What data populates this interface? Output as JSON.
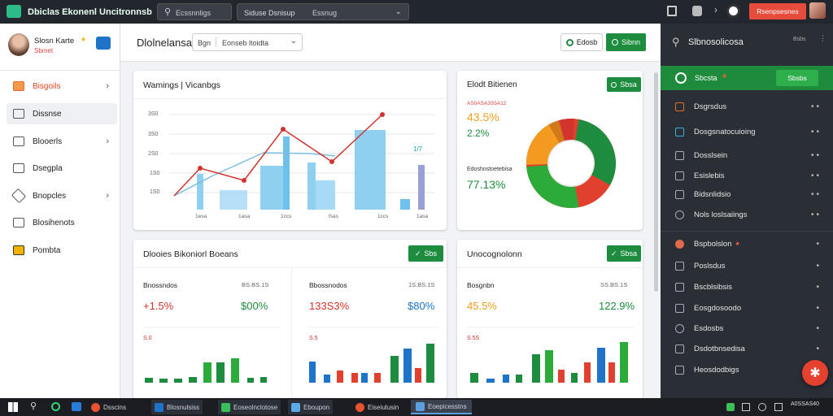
{
  "topbar": {
    "brand": "Dbiclas Ekonenl Uncitronnsb",
    "search1_label": "Ecssnnligs",
    "search2_value": "Siduse Dsnisup",
    "search2_extra": "Essnug",
    "action_label": "Rsenpsesnes",
    "icons": [
      "home-icon",
      "puzzle-icon",
      "chevron-right-icon",
      "clock-icon"
    ]
  },
  "leftnav": {
    "user_name": "Slosn Karte",
    "user_sub": "Sbmet",
    "items": [
      {
        "label": "Bisgoils",
        "icon": "folder-icon",
        "chevron": true,
        "active": true
      },
      {
        "label": "Dissnse",
        "icon": "document-icon",
        "chevron": false
      },
      {
        "label": "Blooerls",
        "icon": "cart-icon",
        "chevron": true
      },
      {
        "label": "Dsegpla",
        "icon": "file-icon",
        "chevron": false
      },
      {
        "label": "Bnopcles",
        "icon": "tag-icon",
        "chevron": true
      },
      {
        "label": "Blosihenots",
        "icon": "calendar-icon",
        "chevron": false
      },
      {
        "label": "Pombta",
        "icon": "grid-icon",
        "chevron": false
      }
    ]
  },
  "header": {
    "title": "Dlolnelansa",
    "tab1": "Bgn",
    "tab2": "Eonseb ltoidta",
    "btn1": "Edosb",
    "btn2": "Sibnn"
  },
  "card1": {
    "title": "Wamings | Vicanbgs",
    "y_ticks": [
      "3S0",
      "3S0",
      "2S0",
      "1S0",
      "1S0",
      "1S0"
    ],
    "x_ticks": [
      "1esa",
      "1asa",
      "1ccs",
      "fsas",
      "1ccs",
      "1asa"
    ],
    "side_label": "1/7"
  },
  "card2": {
    "title": "Elodt Bitienen",
    "btn": "Sbsa",
    "top_label": "AS0ASA3S5A12",
    "val1": "43.5%",
    "val2": "2.2%",
    "mid_label": "Edoshostoetebisa",
    "val3": "77.13%"
  },
  "card3": {
    "title": "Dlooies Bikoniorl Boeans",
    "btn": "Sbs",
    "panels": [
      {
        "label": "Bnossndos",
        "date": "BS.BS.1S",
        "v1": "+1.5%",
        "v2": "$00%",
        "small": "S.0"
      },
      {
        "label": "Bbossnodos",
        "date": "1S.BS.1S",
        "v1": "133S3%",
        "v2": "$80%",
        "small": "S.5"
      }
    ]
  },
  "card4": {
    "title": "Unocognolonn",
    "btn": "Sbsa",
    "label": "Bosgnbn",
    "date": "SS.BS.1S",
    "v1": "45.5%",
    "v2": "122.9%",
    "small": "S.5S"
  },
  "rightpanel": {
    "title": "Slbnosolicosa",
    "head_extra": "Bsbs",
    "active_item": {
      "label": "Sbcsta",
      "btn": "Sbsbs"
    },
    "group1": [
      "Dsgrsdus",
      "Dosgsnatocuioing",
      "Dosslsein",
      "Esislebis",
      "Bidsnlidsio",
      "Nols loslsaiings"
    ],
    "group2_head": "Bspbolslon",
    "group2": [
      "Poslsdus",
      "Bscblsibsis",
      "Eosgdosoodo",
      "Esdosbs",
      "Dsdotbnsedisa",
      "Heosdodbigs"
    ]
  },
  "taskbar": {
    "apps": [
      "Dsscins",
      "Blosnulsiss",
      "Eoseolnclotose",
      "Eboupon",
      "Eiseiulusin",
      "Eoepicesstns"
    ],
    "time": "A0SSAS40"
  },
  "colors": {
    "green": "#1e8c3e",
    "red": "#e0402d",
    "blue": "#1d74c9",
    "lightblue": "#8fd0f0"
  }
}
